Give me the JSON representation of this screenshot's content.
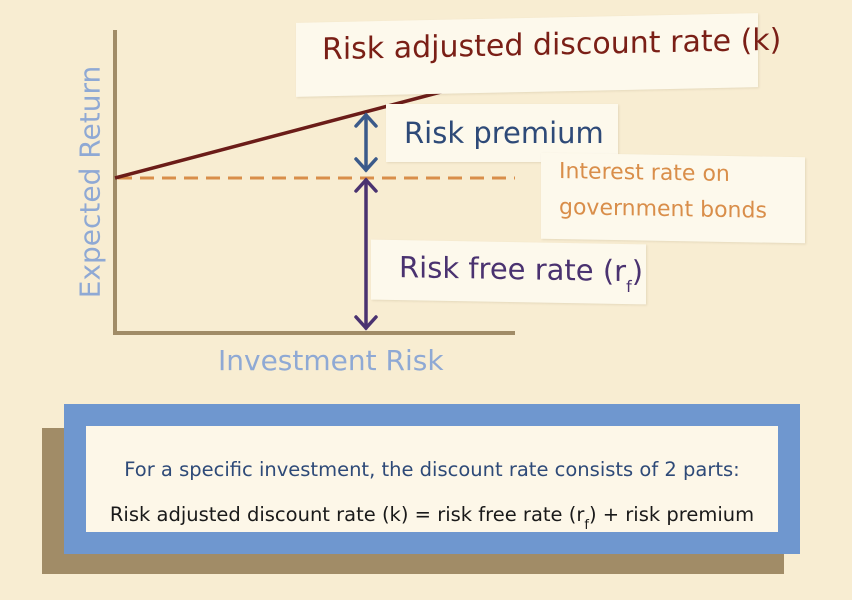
{
  "labels": {
    "risk_adjusted": "Risk adjusted discount rate (k)",
    "risk_premium": "Risk premium",
    "gov_line1": "Interest rate on",
    "gov_line2": "government bonds",
    "risk_free_prefix": "Risk free rate (r",
    "risk_free_sub": "f",
    "risk_free_suffix": ")",
    "y_axis": "Expected Return",
    "x_axis": "Investment Risk"
  },
  "summary": {
    "line1": "For a specific investment, the discount rate consists of 2 parts:",
    "line2_prefix": "Risk adjusted discount rate (k) = risk free rate (r",
    "line2_sub": "f",
    "line2_suffix": ") + risk premium"
  },
  "colors": {
    "background": "#f8edd2",
    "axis": "#a18c67",
    "risk_adjusted_line": "#6b1c18",
    "government_line": "#d98e4a",
    "risk_premium_arrow": "#3b5a8a",
    "risk_free_arrow": "#4a3270",
    "box_border": "#6f97cf"
  }
}
